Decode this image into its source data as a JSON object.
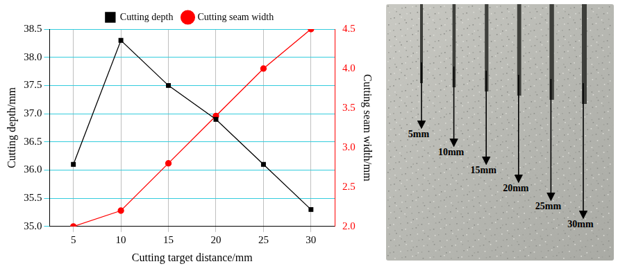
{
  "chart_data": {
    "type": "line",
    "x_label": "Cutting target distance/mm",
    "y_label": "Cutting depth/mm",
    "y2_label": "Cutting seam width/mm",
    "x": [
      5,
      10,
      15,
      20,
      25,
      30
    ],
    "series": [
      {
        "name": "Cutting depth",
        "color": "#000000",
        "marker": "square",
        "line_style": "solid",
        "axis": "y",
        "values": [
          36.1,
          38.3,
          37.5,
          36.9,
          36.1,
          35.3
        ]
      },
      {
        "name": "Cutting seam width",
        "color": "#ff0000",
        "marker": "circle",
        "line_style": "solid",
        "axis": "y2",
        "values": [
          2.0,
          2.2,
          2.8,
          3.4,
          4.0,
          4.5
        ]
      }
    ],
    "xlim": [
      2.5,
      32.5
    ],
    "xticks": [
      5,
      10,
      15,
      20,
      25,
      30
    ],
    "ylim": [
      35,
      38.5
    ],
    "yticks": [
      {
        "value": 35,
        "label": "35.0"
      },
      35.5,
      {
        "value": 36,
        "label": "36.0"
      },
      36.5,
      {
        "value": 37,
        "label": "37.0"
      },
      37.5,
      {
        "value": 38,
        "label": "38.0"
      },
      38.5
    ],
    "y2lim": [
      2,
      4.5
    ],
    "y2ticks": [
      {
        "value": 2,
        "label": "2.0"
      },
      2.5,
      {
        "value": 3,
        "label": "3.0"
      },
      3.5,
      {
        "value": 4,
        "label": "4.0"
      },
      4.5
    ],
    "grid": true,
    "legend": "top"
  },
  "photo": {
    "labels": [
      "5mm",
      "10mm",
      "15mm",
      "20mm",
      "25mm",
      "30mm"
    ]
  }
}
